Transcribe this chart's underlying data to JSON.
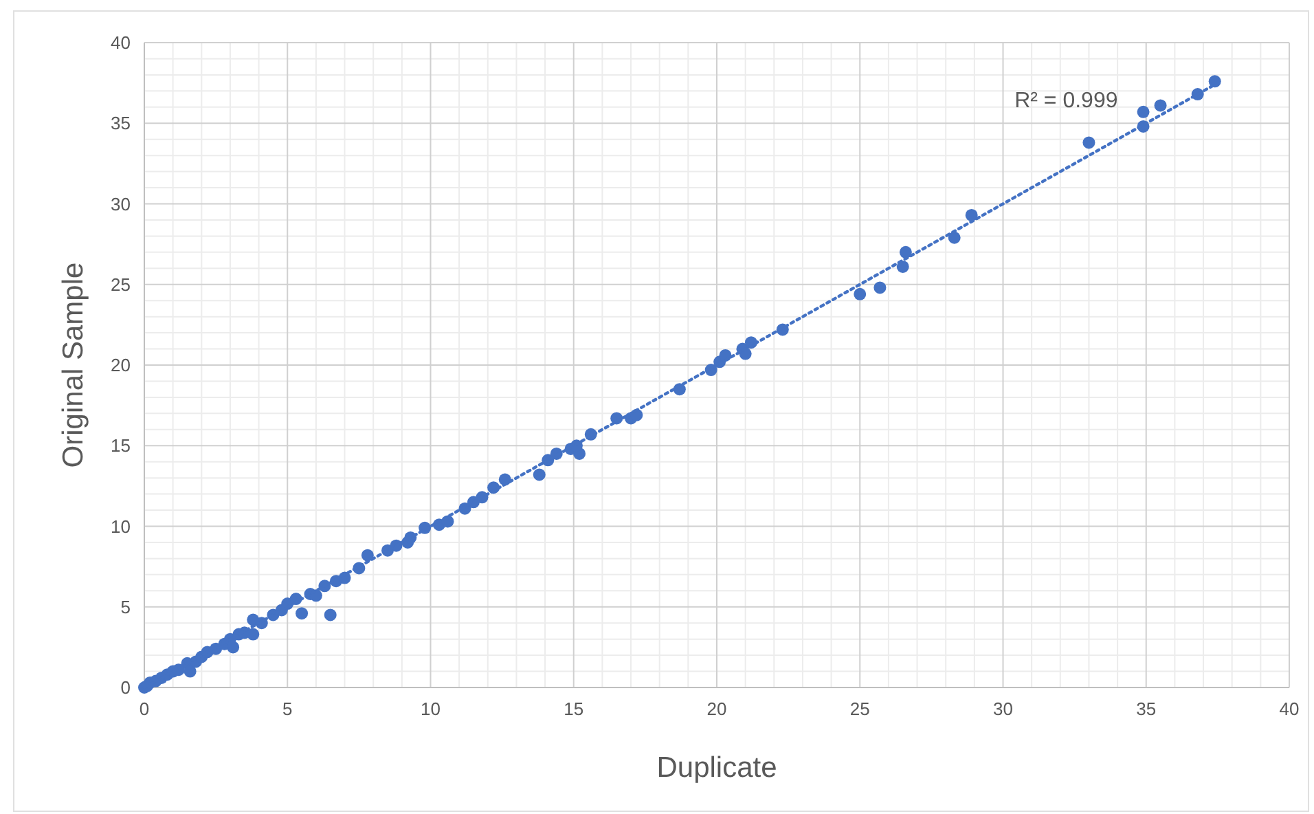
{
  "chart_data": {
    "type": "scatter",
    "xlabel": "Duplicate",
    "ylabel": "Original Sample",
    "xlim": [
      0,
      40
    ],
    "ylim": [
      0,
      40
    ],
    "xticks": [
      0,
      5,
      10,
      15,
      20,
      25,
      30,
      35,
      40
    ],
    "yticks": [
      0,
      5,
      10,
      15,
      20,
      25,
      30,
      35,
      40
    ],
    "grid": true,
    "marker": "circle",
    "annotations": [
      "R² = 0.999"
    ],
    "series": [
      {
        "color": "#4472c4",
        "x": [
          0,
          0.1,
          0.2,
          0.4,
          0.6,
          0.8,
          1,
          1.2,
          1.5,
          1.6,
          1.8,
          2,
          2.2,
          2.5,
          2.8,
          3,
          3.1,
          3.3,
          3.5,
          3.8,
          3.8,
          4.1,
          4.5,
          4.8,
          5,
          5.3,
          5.5,
          5.8,
          6,
          6.3,
          6.5,
          6.7,
          7,
          7.5,
          7.8,
          8.5,
          8.8,
          9.2,
          9.3,
          9.8,
          10.3,
          10.6,
          11.2,
          11.5,
          11.8,
          12.2,
          12.6,
          13.8,
          14.1,
          14.4,
          14.9,
          15.2,
          15.1,
          15.6,
          16.5,
          17,
          17.2,
          18.7,
          19.8,
          20.1,
          20.3,
          20.9,
          21,
          21.2,
          22.3,
          25,
          25.7,
          26.5,
          26.6,
          28.3,
          28.9,
          33,
          34.9,
          34.9,
          35.5,
          36.8,
          37.4
        ],
        "values": [
          0,
          0.1,
          0.3,
          0.4,
          0.6,
          0.8,
          1,
          1.1,
          1.5,
          1,
          1.6,
          1.9,
          2.2,
          2.4,
          2.7,
          3,
          2.5,
          3.3,
          3.4,
          3.3,
          4.2,
          4,
          4.5,
          4.8,
          5.2,
          5.5,
          4.6,
          5.8,
          5.7,
          6.3,
          4.5,
          6.6,
          6.8,
          7.4,
          8.2,
          8.5,
          8.8,
          9,
          9.3,
          9.9,
          10.1,
          10.3,
          11.1,
          11.5,
          11.8,
          12.4,
          12.9,
          13.2,
          14.1,
          14.5,
          14.8,
          14.5,
          15,
          15.7,
          16.7,
          16.7,
          16.9,
          18.5,
          19.7,
          20.2,
          20.6,
          21,
          20.7,
          21.4,
          22.2,
          24.4,
          24.8,
          26.1,
          27,
          27.9,
          29.3,
          33.8,
          34.8,
          35.7,
          36.1,
          36.8,
          37.6
        ]
      },
      {
        "type": "line",
        "color": "#4472c4",
        "line_style": "dotted",
        "marker": "none",
        "x": [
          0,
          37.4
        ],
        "values": [
          0,
          37.4
        ]
      }
    ]
  }
}
